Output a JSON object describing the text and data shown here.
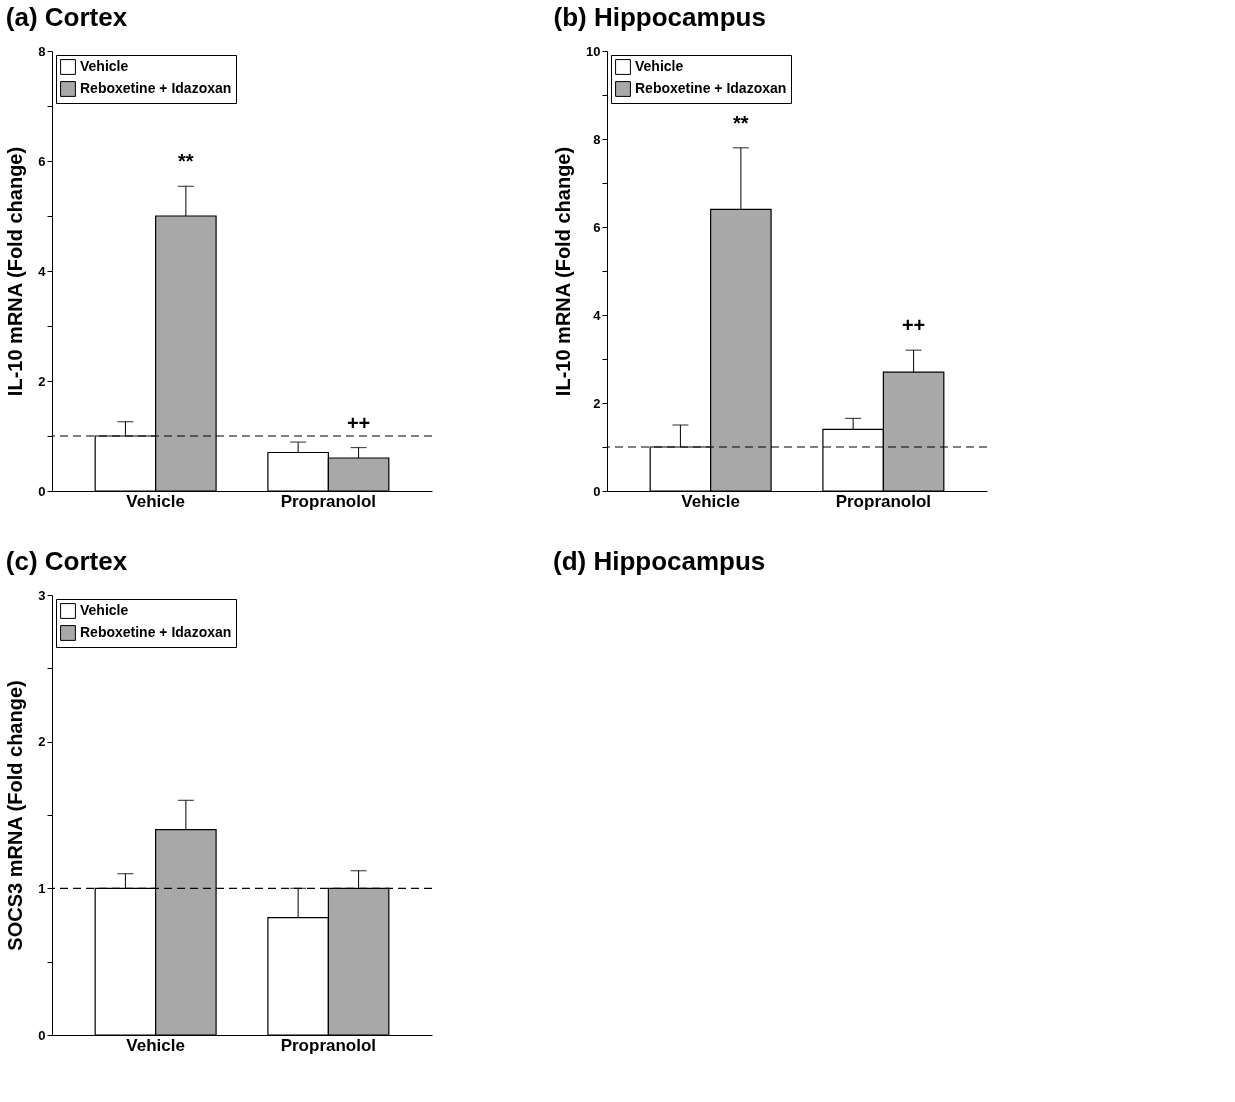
{
  "chart_data": [
    {
      "type": "bar",
      "title": "(a) Cortex",
      "ylabel": "IL-10 mRNA (Fold change)",
      "categories": [
        "Vehicle",
        "Propranolol"
      ],
      "series": [
        {
          "name": "Vehicle",
          "color": "#ffffff",
          "values": [
            1.0,
            0.7
          ],
          "errors": [
            [
              1.0,
              1.26
            ],
            [
              0.7,
              0.89
            ]
          ]
        },
        {
          "name": "Reboxetine + Idazoxan",
          "color": "#a8a8a8",
          "values": [
            5.0,
            0.6
          ],
          "errors": [
            [
              5.0,
              5.54
            ],
            [
              0.6,
              0.79
            ]
          ]
        }
      ],
      "ylim": [
        0,
        8
      ],
      "yticks": [
        0,
        {
          "value": 1,
          "label": null
        },
        2,
        {
          "value": 3,
          "label": null
        },
        4,
        {
          "value": 5,
          "label": null
        },
        6,
        {
          "value": 7,
          "label": null
        },
        8
      ],
      "ref_lines": [
        {
          "axis": "y",
          "value": 1,
          "line_style": "dashed"
        }
      ],
      "annotations": [
        "**",
        "++"
      ],
      "legend": "top left"
    },
    {
      "type": "bar",
      "title": "(b) Hippocampus",
      "ylabel": "IL-10 mRNA (Fold change)",
      "categories": [
        "Vehicle",
        "Propranolol"
      ],
      "series": [
        {
          "name": "Vehicle",
          "color": "#ffffff",
          "values": [
            1.0,
            1.4
          ],
          "errors": [
            [
              1.0,
              1.5
            ],
            [
              1.4,
              1.65
            ]
          ]
        },
        {
          "name": "Reboxetine + Idazoxan",
          "color": "#a8a8a8",
          "values": [
            6.4,
            2.7
          ],
          "errors": [
            [
              6.4,
              7.8
            ],
            [
              2.7,
              3.2
            ]
          ]
        }
      ],
      "ylim": [
        0,
        10
      ],
      "yticks": [
        0,
        {
          "value": 1,
          "label": null
        },
        2,
        {
          "value": 3,
          "label": null
        },
        4,
        {
          "value": 5,
          "label": null
        },
        6,
        {
          "value": 7,
          "label": null
        },
        8,
        {
          "value": 9,
          "label": null
        },
        10
      ],
      "ref_lines": [
        {
          "axis": "y",
          "value": 1,
          "line_style": "dashed"
        }
      ],
      "annotations": [
        "**",
        "++"
      ],
      "legend": "top left"
    },
    {
      "type": "bar",
      "title": "(c) Cortex",
      "ylabel": "SOCS3 mRNA (Fold change)",
      "categories": [
        "Vehicle",
        "Propranolol"
      ],
      "series": [
        {
          "name": "Vehicle",
          "color": "#ffffff",
          "values": [
            1.0,
            0.8
          ],
          "errors": [
            [
              1.0,
              1.1
            ],
            [
              0.8,
              1.0
            ]
          ]
        },
        {
          "name": "Reboxetine + Idazoxan",
          "color": "#a8a8a8",
          "values": [
            1.4,
            1.0
          ],
          "errors": [
            [
              1.4,
              1.6
            ],
            [
              1.0,
              1.12
            ]
          ]
        }
      ],
      "ylim": [
        0,
        3
      ],
      "yticks": [
        0,
        {
          "value": 0.5,
          "label": null
        },
        1,
        {
          "value": 1.5,
          "label": null
        },
        2,
        {
          "value": 2.5,
          "label": null
        },
        3
      ],
      "ref_lines": [
        {
          "axis": "y",
          "value": 1,
          "line_style": "dashed"
        }
      ],
      "legend": "top left"
    },
    {
      "type": "other",
      "title": "(d) Hippocampus"
    }
  ]
}
